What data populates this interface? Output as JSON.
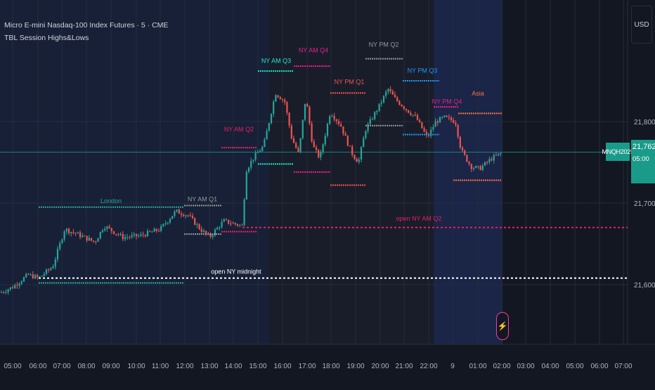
{
  "legend": {
    "title": "Micro E-mini Nasdaq-100 Index Futures · 5 · CME",
    "indicator": "TBL Session Highs&Lows"
  },
  "currency": "USD",
  "price_axis": {
    "labels": [
      "21,800.00",
      "21,700.00",
      "21,600.00"
    ],
    "values": [
      21800,
      21700,
      21600
    ]
  },
  "current_price": {
    "symbol": "MNQH2025",
    "price": "21,762.50",
    "countdown": "05:00",
    "value": 21762.5,
    "color": "#1a9b8a"
  },
  "time_axis": {
    "labels": [
      "05:00",
      "06:00",
      "07:00",
      "08:00",
      "09:00",
      "10:00",
      "11:00",
      "12:00",
      "13:00",
      "14:00",
      "15:00",
      "16:00",
      "17:00",
      "18:00",
      "19:00",
      "20:00",
      "21:00",
      "22:00",
      "9",
      "01:00",
      "02:00",
      "03:00",
      "04:00",
      "05:00",
      "06:00",
      "07:00"
    ]
  },
  "sessions": [
    {
      "label": "London",
      "color": "#26a69a"
    },
    {
      "label": "NY AM Q1",
      "color": "#9598a1"
    },
    {
      "label": "NY AM Q2",
      "color": "#e91e63"
    },
    {
      "label": "NY AM Q3",
      "color": "#22e5c7"
    },
    {
      "label": "NY AM Q4",
      "color": "#e91e8c"
    },
    {
      "label": "NY PM Q1",
      "color": "#ef5350"
    },
    {
      "label": "NY PM Q2",
      "color": "#9598a1"
    },
    {
      "label": "NY PM Q3",
      "color": "#2196f3"
    },
    {
      "label": "NY PM Q4",
      "color": "#e91e8c"
    },
    {
      "label": "Asia",
      "color": "#ff7043"
    }
  ],
  "opens": [
    {
      "label": "open NY AM Q2",
      "color": "#e91e63"
    },
    {
      "label": "open NY midnight",
      "color": "#ffffff"
    }
  ],
  "colors": {
    "up": "#26a69a",
    "down": "#ef5350",
    "background": "#131722",
    "grid": "#2a2e39"
  }
}
